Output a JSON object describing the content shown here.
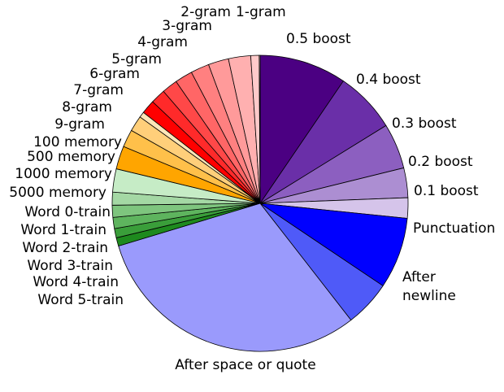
{
  "chart_data": {
    "type": "pie",
    "start_direction": "top",
    "direction": "clockwise",
    "slices": [
      {
        "label": "0.5 boost",
        "value": 9.4,
        "color": "#4b0082"
      },
      {
        "label": "0.4 boost",
        "value": 6.6,
        "color": "#6a2fa8"
      },
      {
        "label": "0.3 boost",
        "value": 4.9,
        "color": "#8c5fc0"
      },
      {
        "label": "0.2 boost",
        "value": 3.2,
        "color": "#ac8ed2"
      },
      {
        "label": "0.1 boost",
        "value": 2.2,
        "color": "#d5c4ea"
      },
      {
        "label": "Punctuation",
        "value": 7.7,
        "color": "#0000ff"
      },
      {
        "label": "After\nnewline",
        "value": 5.0,
        "color": "#4f5af8"
      },
      {
        "label": "After space or quote",
        "value": 30.5,
        "color": "#9a9afc"
      },
      {
        "label": "Word 5-train",
        "value": 0.9,
        "color": "#1e8a1e"
      },
      {
        "label": "Word 4-train",
        "value": 1.0,
        "color": "#3a9e3a"
      },
      {
        "label": "Word 3-train",
        "value": 1.2,
        "color": "#5eb45e"
      },
      {
        "label": "Word 2-train",
        "value": 1.3,
        "color": "#7ec57e"
      },
      {
        "label": "Word 1-train",
        "value": 1.4,
        "color": "#a4d8a4"
      },
      {
        "label": "Word 0-train",
        "value": 2.5,
        "color": "#c6ecc6"
      },
      {
        "label": "5000 memory",
        "value": 2.5,
        "color": "#ffa500"
      },
      {
        "label": "1000 memory",
        "value": 1.9,
        "color": "#ffc04a"
      },
      {
        "label": "500 memory",
        "value": 1.7,
        "color": "#ffcf7a"
      },
      {
        "label": "100 memory",
        "value": 0.6,
        "color": "#ffe6b8"
      },
      {
        "label": "9-gram",
        "value": 1.5,
        "color": "#ff0000"
      },
      {
        "label": "8-gram",
        "value": 1.6,
        "color": "#ff2a2a"
      },
      {
        "label": "7-gram",
        "value": 1.7,
        "color": "#ff4848"
      },
      {
        "label": "6-gram",
        "value": 1.9,
        "color": "#ff6666"
      },
      {
        "label": "5-gram",
        "value": 2.0,
        "color": "#ff8080"
      },
      {
        "label": "4-gram",
        "value": 2.2,
        "color": "#ff9a9a"
      },
      {
        "label": "3-gram",
        "value": 2.4,
        "color": "#ffb0b0"
      },
      {
        "label": "2-gram",
        "value": 0.9,
        "color": "#ffcaca"
      },
      {
        "label": "1-gram",
        "value": 0.1,
        "color": "#ffe4e4"
      }
    ]
  }
}
